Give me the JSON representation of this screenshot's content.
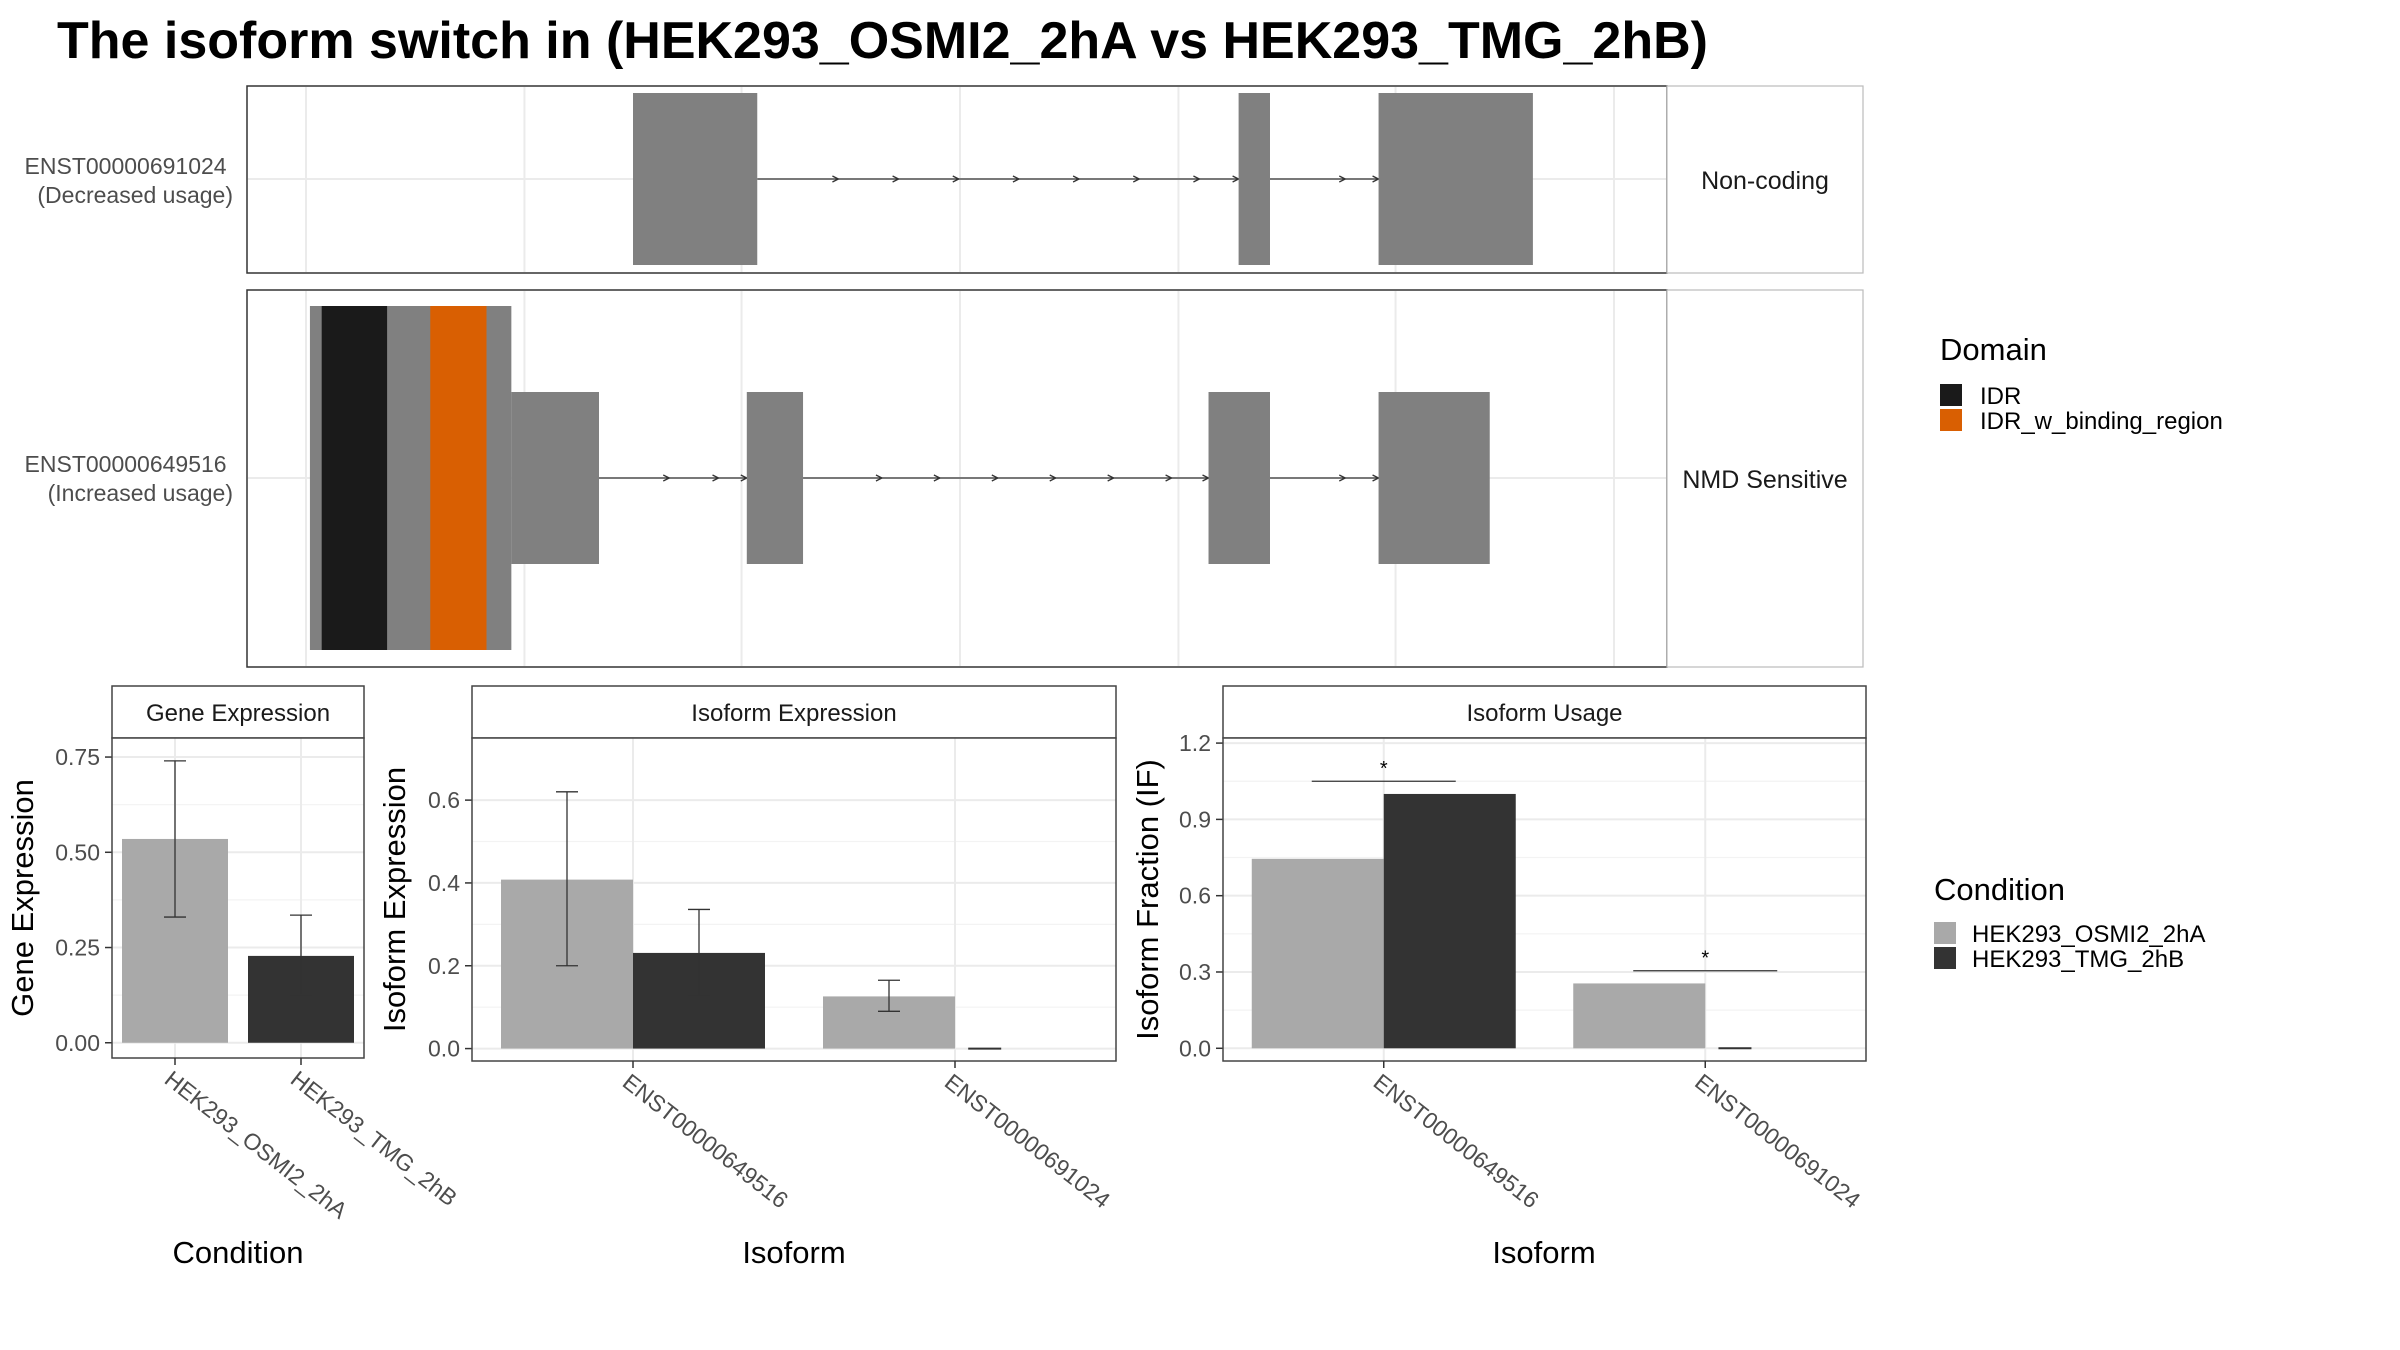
{
  "title": "The isoform switch in  (HEK293_OSMI2_2hA vs HEK293_TMG_2hB)",
  "legends": {
    "domain": {
      "title": "Domain",
      "items": [
        {
          "label": "IDR",
          "color": "#1a1a1a"
        },
        {
          "label": "IDR_w_binding_region",
          "color": "#d95f02"
        }
      ]
    },
    "condition": {
      "title": "Condition",
      "items": [
        {
          "label": "HEK293_OSMI2_2hA",
          "color": "#a9a9a9"
        },
        {
          "label": "HEK293_TMG_2hB",
          "color": "#333333"
        }
      ]
    }
  },
  "colors": {
    "exon": "#808080",
    "idr": "#1a1a1a",
    "idr_binding": "#d95f02",
    "cond_a": "#a9a9a9",
    "cond_b": "#333333"
  },
  "chart_data": [
    {
      "type": "diagram",
      "name": "isoform structures",
      "coordinate_range": [
        0,
        100
      ],
      "isoforms": [
        {
          "id": "ENST00000691024",
          "usage": "(Decreased usage)",
          "strip": "Non-coding",
          "exons": [
            {
              "start": 25.0,
              "end": 34.5,
              "height": "full"
            },
            {
              "start": 71.3,
              "end": 73.7,
              "height": "full"
            },
            {
              "start": 82.0,
              "end": 93.8,
              "height": "full"
            }
          ],
          "domains": []
        },
        {
          "id": "ENST00000649516",
          "usage": "(Increased usage)",
          "strip": "NMD Sensitive",
          "exons": [
            {
              "start": 0.3,
              "end": 15.7,
              "height": "coding"
            },
            {
              "start": 15.7,
              "end": 22.4,
              "height": "utr"
            },
            {
              "start": 33.7,
              "end": 38.0,
              "height": "utr"
            },
            {
              "start": 69.0,
              "end": 73.7,
              "height": "utr"
            },
            {
              "start": 82.0,
              "end": 90.5,
              "height": "utr"
            }
          ],
          "domains": [
            {
              "name": "IDR",
              "start": 1.2,
              "end": 6.2
            },
            {
              "name": "IDR_w_binding_region",
              "start": 9.5,
              "end": 13.8
            }
          ]
        }
      ]
    },
    {
      "type": "bar",
      "strip": "Gene Expression",
      "xlabel": "Condition",
      "ylabel": "Gene Expression",
      "ylim": [
        -0.04,
        0.8
      ],
      "yticks": [
        "0.00",
        "0.25",
        "0.50",
        "0.75"
      ],
      "categories": [
        "HEK293_OSMI2_2hA",
        "HEK293_TMG_2hB"
      ],
      "values": [
        0.535,
        0.228
      ],
      "errors": [
        [
          0.33,
          0.74
        ],
        [
          0.125,
          0.335
        ]
      ]
    },
    {
      "type": "bar",
      "strip": "Isoform Expression",
      "xlabel": "Isoform",
      "ylabel": "Isoform Expression",
      "ylim": [
        -0.03,
        0.75
      ],
      "yticks": [
        "0.0",
        "0.2",
        "0.4",
        "0.6"
      ],
      "categories": [
        "ENST00000649516",
        "ENST00000691024"
      ],
      "series": [
        {
          "name": "HEK293_OSMI2_2hA",
          "values": [
            0.408,
            0.126
          ],
          "errors": [
            [
              0.2,
              0.62
            ],
            [
              0.09,
              0.165
            ]
          ]
        },
        {
          "name": "HEK293_TMG_2hB",
          "values": [
            0.231,
            0.0
          ],
          "errors": [
            [
              0.126,
              0.336
            ],
            null
          ]
        }
      ]
    },
    {
      "type": "bar",
      "strip": "Isoform Usage",
      "xlabel": "Isoform",
      "ylabel": "Isoform Fraction (IF)",
      "ylim": [
        -0.05,
        1.22
      ],
      "yticks": [
        "0.0",
        "0.3",
        "0.6",
        "0.9",
        "1.2"
      ],
      "categories": [
        "ENST00000649516",
        "ENST00000691024"
      ],
      "series": [
        {
          "name": "HEK293_OSMI2_2hA",
          "values": [
            0.745,
            0.255
          ]
        },
        {
          "name": "HEK293_TMG_2hB",
          "values": [
            1.0,
            0.0
          ]
        }
      ],
      "significance": [
        {
          "category": "ENST00000649516",
          "label": "*",
          "y": 1.05
        },
        {
          "category": "ENST00000691024",
          "label": "*",
          "y": 0.305
        }
      ]
    }
  ]
}
